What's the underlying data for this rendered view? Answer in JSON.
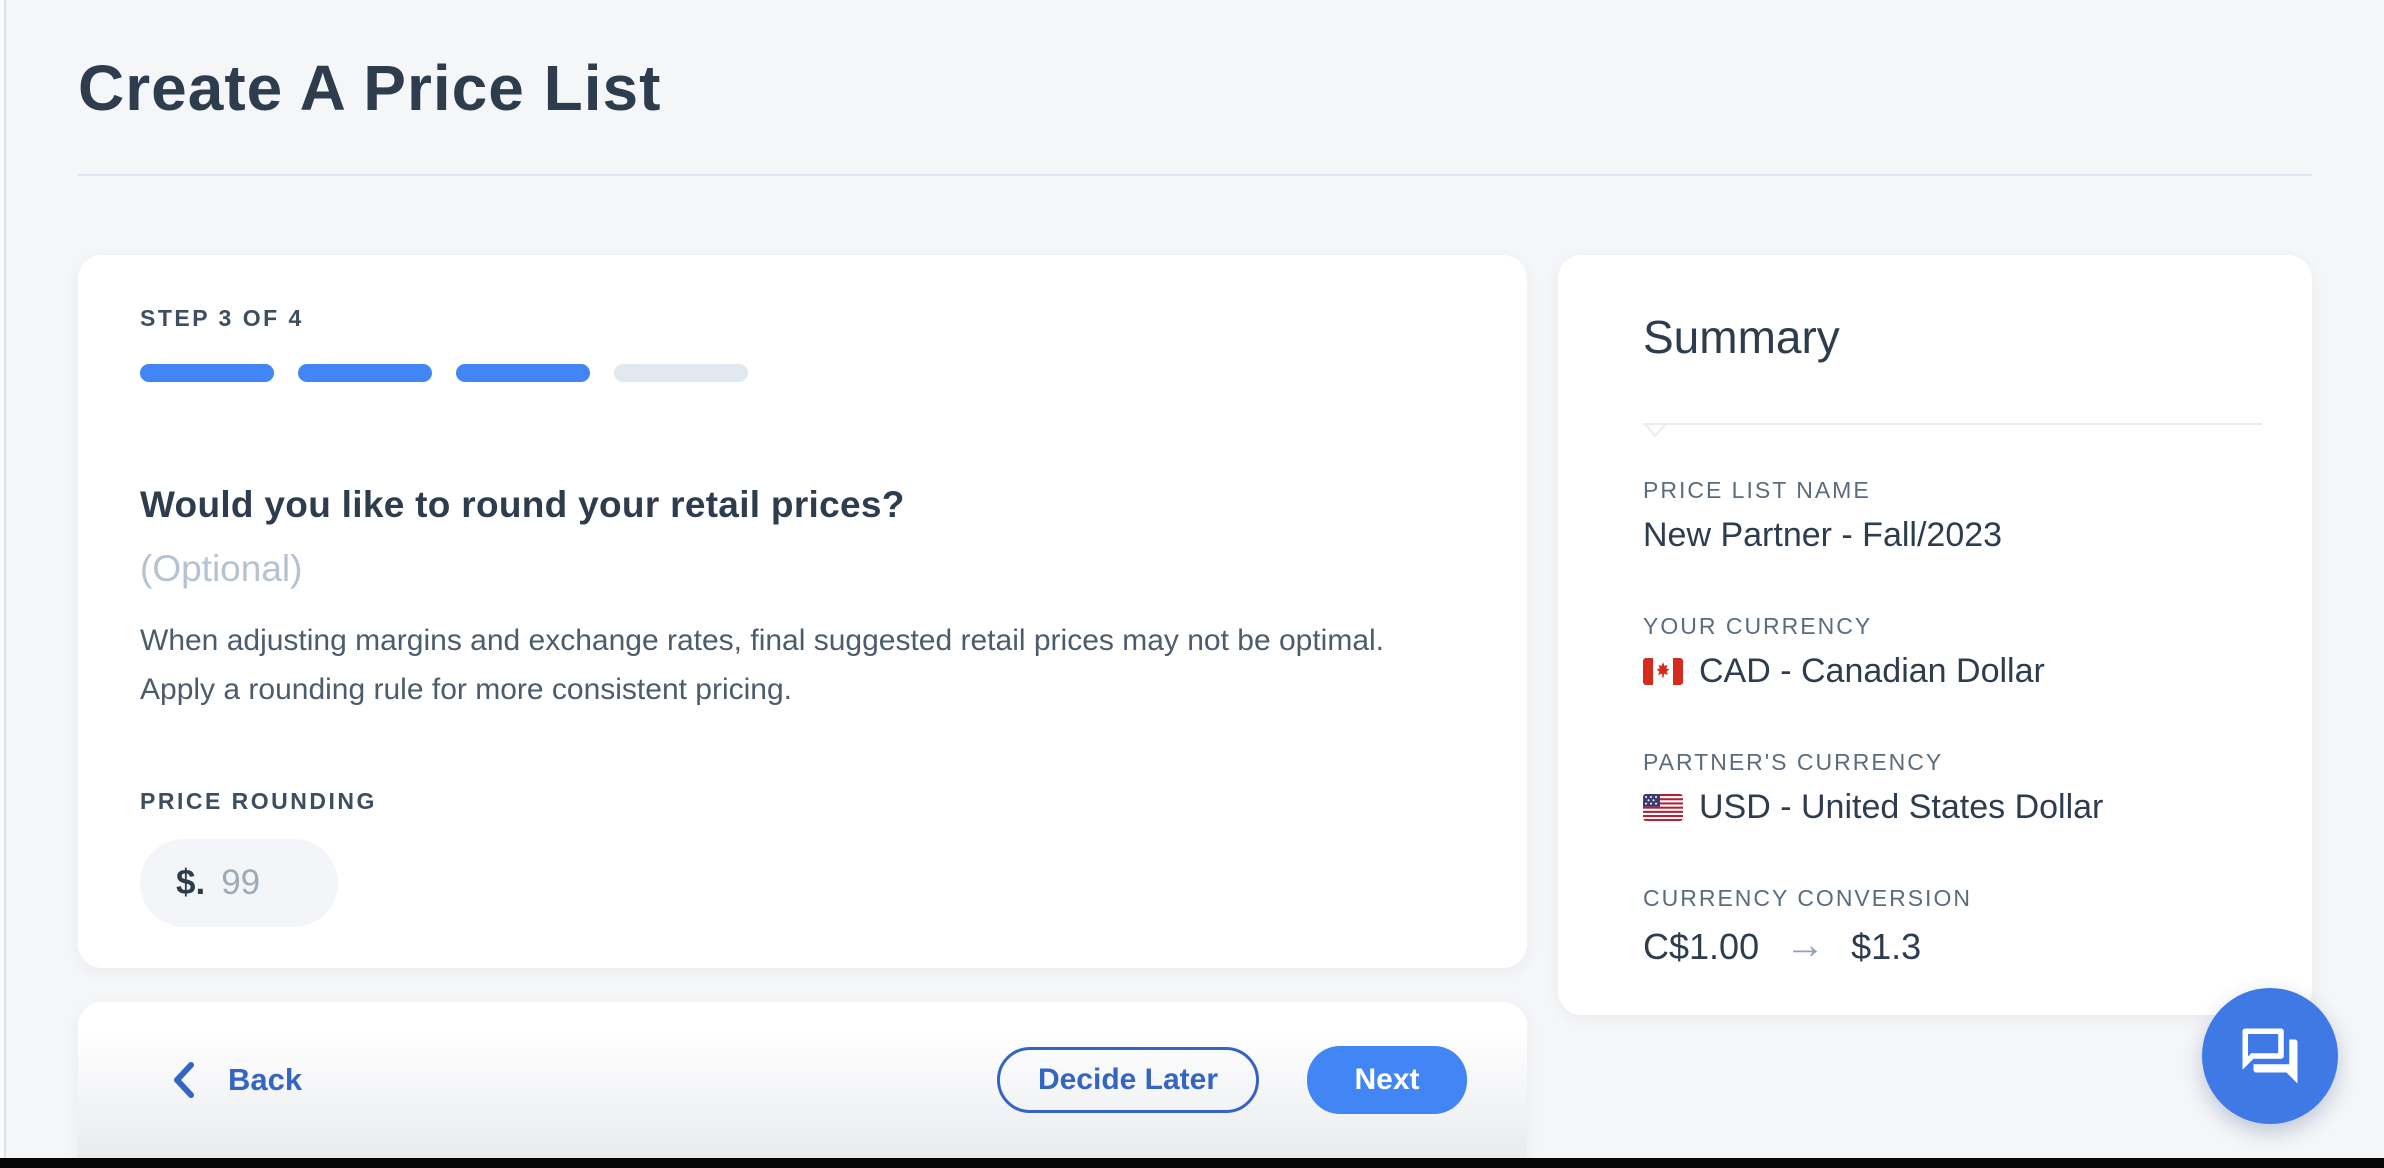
{
  "page": {
    "title": "Create A Price List"
  },
  "wizard": {
    "step_label": "STEP 3 OF 4",
    "steps_total": 4,
    "steps_completed": 3,
    "question": "Would you like to round your retail prices?",
    "optional_note": "(Optional)",
    "description": "When adjusting margins and exchange rates, final suggested retail prices may not be optimal. Apply a rounding rule for more consistent pricing.",
    "price_rounding": {
      "label": "PRICE ROUNDING",
      "prefix": "$.",
      "placeholder": "99"
    }
  },
  "footer": {
    "back_label": "Back",
    "decide_later_label": "Decide Later",
    "next_label": "Next"
  },
  "summary": {
    "title": "Summary",
    "items": [
      {
        "label": "PRICE LIST NAME",
        "value": "New Partner - Fall/2023"
      },
      {
        "label": "YOUR CURRENCY",
        "value": "CAD - Canadian Dollar",
        "flag": "canada-flag"
      },
      {
        "label": "PARTNER'S CURRENCY",
        "value": "USD - United States Dollar",
        "flag": "us-flag"
      },
      {
        "label": "CURRENCY CONVERSION",
        "value_from": "C$1.00",
        "value_to": "$1.3"
      }
    ]
  },
  "chat": {
    "icon": "chat-bubbles-icon"
  },
  "colors": {
    "accent_blue": "#4285f4",
    "action_blue": "#3565c3",
    "ink": "#2e3d4e",
    "page_bg": "#f5f6f8",
    "progress_empty": "#e2e8ef",
    "chat_blue": "#3f79e6"
  }
}
